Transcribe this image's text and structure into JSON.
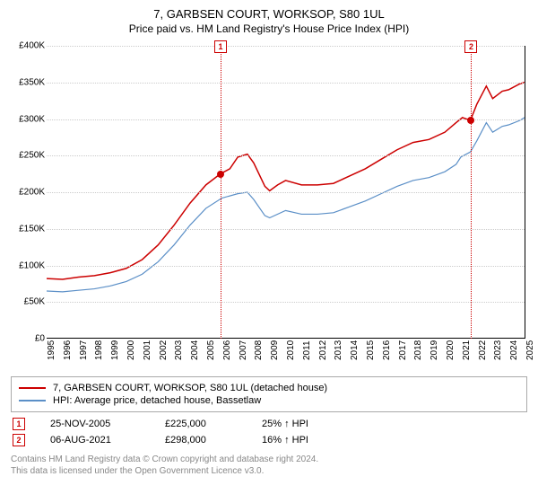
{
  "title": "7, GARBSEN COURT, WORKSOP, S80 1UL",
  "subtitle": "Price paid vs. HM Land Registry's House Price Index (HPI)",
  "chart": {
    "type": "line",
    "background_color": "#ffffff",
    "grid_color": "#cccccc",
    "x_axis": {
      "min": 1995,
      "max": 2025,
      "ticks": [
        1995,
        1996,
        1997,
        1998,
        1999,
        2000,
        2001,
        2002,
        2003,
        2004,
        2005,
        2006,
        2007,
        2008,
        2009,
        2010,
        2011,
        2012,
        2013,
        2014,
        2015,
        2016,
        2017,
        2018,
        2019,
        2020,
        2021,
        2022,
        2023,
        2024,
        2025
      ]
    },
    "y_axis": {
      "min": 0,
      "max": 400000,
      "ticks": [
        0,
        50000,
        100000,
        150000,
        200000,
        250000,
        300000,
        350000,
        400000
      ],
      "tick_labels": [
        "£0",
        "£50K",
        "£100K",
        "£150K",
        "£200K",
        "£250K",
        "£300K",
        "£350K",
        "£400K"
      ],
      "label_fontsize": 10
    },
    "series": [
      {
        "name": "property",
        "label": "7, GARBSEN COURT, WORKSOP, S80 1UL (detached house)",
        "color": "#cc0000",
        "line_width": 1.5,
        "points": [
          [
            1995,
            82000
          ],
          [
            1996,
            81000
          ],
          [
            1997,
            84000
          ],
          [
            1998,
            86000
          ],
          [
            1999,
            90000
          ],
          [
            2000,
            96000
          ],
          [
            2001,
            108000
          ],
          [
            2002,
            128000
          ],
          [
            2003,
            155000
          ],
          [
            2004,
            185000
          ],
          [
            2005,
            210000
          ],
          [
            2005.9,
            225000
          ],
          [
            2006.5,
            232000
          ],
          [
            2007,
            248000
          ],
          [
            2007.6,
            252000
          ],
          [
            2008,
            240000
          ],
          [
            2008.7,
            208000
          ],
          [
            2009,
            202000
          ],
          [
            2009.5,
            210000
          ],
          [
            2010,
            216000
          ],
          [
            2011,
            210000
          ],
          [
            2012,
            210000
          ],
          [
            2013,
            212000
          ],
          [
            2014,
            222000
          ],
          [
            2015,
            232000
          ],
          [
            2016,
            245000
          ],
          [
            2017,
            258000
          ],
          [
            2018,
            268000
          ],
          [
            2019,
            272000
          ],
          [
            2020,
            282000
          ],
          [
            2020.7,
            295000
          ],
          [
            2021.1,
            302000
          ],
          [
            2021.6,
            298000
          ],
          [
            2022,
            320000
          ],
          [
            2022.6,
            345000
          ],
          [
            2023,
            328000
          ],
          [
            2023.6,
            338000
          ],
          [
            2024,
            340000
          ],
          [
            2024.7,
            348000
          ],
          [
            2025,
            350000
          ]
        ]
      },
      {
        "name": "hpi",
        "label": "HPI: Average price, detached house, Bassetlaw",
        "color": "#5b8fc7",
        "line_width": 1.2,
        "points": [
          [
            1995,
            65000
          ],
          [
            1996,
            64000
          ],
          [
            1997,
            66000
          ],
          [
            1998,
            68000
          ],
          [
            1999,
            72000
          ],
          [
            2000,
            78000
          ],
          [
            2001,
            88000
          ],
          [
            2002,
            105000
          ],
          [
            2003,
            128000
          ],
          [
            2004,
            155000
          ],
          [
            2005,
            178000
          ],
          [
            2006,
            192000
          ],
          [
            2007,
            198000
          ],
          [
            2007.6,
            200000
          ],
          [
            2008,
            190000
          ],
          [
            2008.7,
            168000
          ],
          [
            2009,
            165000
          ],
          [
            2010,
            175000
          ],
          [
            2011,
            170000
          ],
          [
            2012,
            170000
          ],
          [
            2013,
            172000
          ],
          [
            2014,
            180000
          ],
          [
            2015,
            188000
          ],
          [
            2016,
            198000
          ],
          [
            2017,
            208000
          ],
          [
            2018,
            216000
          ],
          [
            2019,
            220000
          ],
          [
            2020,
            228000
          ],
          [
            2020.7,
            238000
          ],
          [
            2021,
            248000
          ],
          [
            2021.6,
            255000
          ],
          [
            2022,
            270000
          ],
          [
            2022.6,
            295000
          ],
          [
            2023,
            282000
          ],
          [
            2023.6,
            290000
          ],
          [
            2024,
            292000
          ],
          [
            2024.7,
            298000
          ],
          [
            2025,
            302000
          ]
        ]
      }
    ],
    "markers": [
      {
        "id": "1",
        "x": 2005.9,
        "y": 225000,
        "color": "#cc0000"
      },
      {
        "id": "2",
        "x": 2021.6,
        "y": 298000,
        "color": "#cc0000"
      }
    ],
    "vline_color": "#cc0000"
  },
  "legend": {
    "items": [
      {
        "color": "#cc0000",
        "label": "7, GARBSEN COURT, WORKSOP, S80 1UL (detached house)"
      },
      {
        "color": "#5b8fc7",
        "label": "HPI: Average price, detached house, Bassetlaw"
      }
    ]
  },
  "sales": [
    {
      "num": "1",
      "date": "25-NOV-2005",
      "price": "£225,000",
      "pct": "25% ↑ HPI"
    },
    {
      "num": "2",
      "date": "06-AUG-2021",
      "price": "£298,000",
      "pct": "16% ↑ HPI"
    }
  ],
  "footer": {
    "line1": "Contains HM Land Registry data © Crown copyright and database right 2024.",
    "line2": "This data is licensed under the Open Government Licence v3.0."
  }
}
